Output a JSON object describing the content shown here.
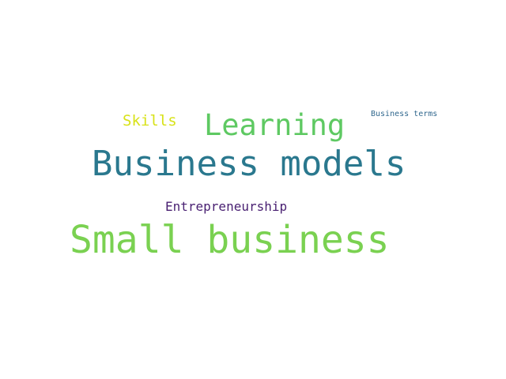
{
  "words": [
    {
      "text": "Small business",
      "color": "#7ad151"
    },
    {
      "text": "Business models",
      "color": "#2a788e"
    },
    {
      "text": "Learning",
      "color": "#5ec962"
    },
    {
      "text": "Skills",
      "color": "#d8e219"
    },
    {
      "text": "Entrepreneurship",
      "color": "#481f71"
    },
    {
      "text": "Business terms",
      "color": "#31688e"
    }
  ]
}
